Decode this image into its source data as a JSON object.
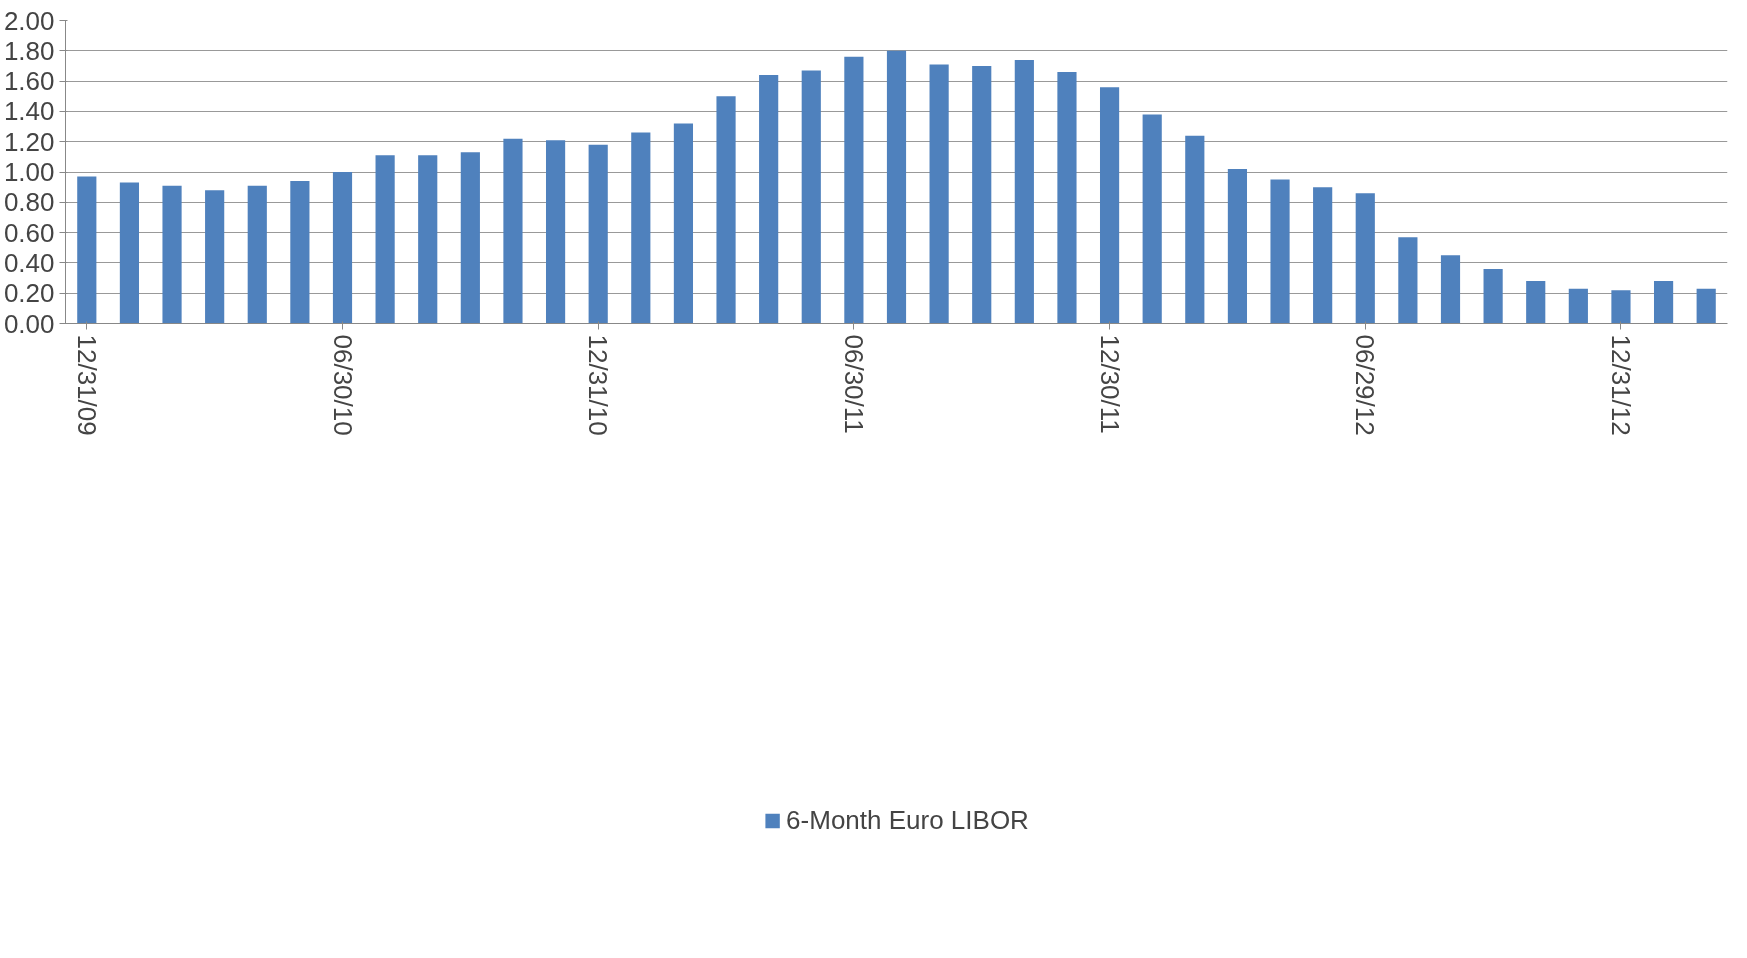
{
  "chart_data": {
    "type": "bar",
    "categories": [
      "12/31/09",
      null,
      null,
      null,
      null,
      null,
      "06/30/10",
      null,
      null,
      null,
      null,
      null,
      "12/31/10",
      null,
      null,
      null,
      null,
      null,
      "06/30/11",
      null,
      null,
      null,
      null,
      null,
      "12/30/11",
      null,
      null,
      null,
      null,
      null,
      "06/29/12",
      null,
      null,
      null,
      null,
      null,
      "12/31/12",
      null,
      null
    ],
    "series": [
      {
        "name": "6-Month Euro LIBOR",
        "color": "#4f81bd",
        "values": [
          0.97,
          0.93,
          0.91,
          0.88,
          0.91,
          0.94,
          1.0,
          1.11,
          1.11,
          1.13,
          1.22,
          1.21,
          1.18,
          1.26,
          1.32,
          1.5,
          1.64,
          1.67,
          1.76,
          1.8,
          1.71,
          1.7,
          1.74,
          1.66,
          1.56,
          1.38,
          1.24,
          1.02,
          0.95,
          0.9,
          0.86,
          0.57,
          0.45,
          0.36,
          0.28,
          0.23,
          0.22,
          0.28,
          0.23
        ]
      }
    ],
    "ylim": [
      0,
      2.0
    ],
    "yticks": [
      {
        "value": 0,
        "label": "0.00"
      },
      {
        "value": 0.2,
        "label": "0.20"
      },
      {
        "value": 0.4,
        "label": "0.40"
      },
      {
        "value": 0.6,
        "label": "0.60"
      },
      {
        "value": 0.8,
        "label": "0.80"
      },
      {
        "value": 1.0,
        "label": "1.00"
      },
      {
        "value": 1.2,
        "label": "1.20"
      },
      {
        "value": 1.4,
        "label": "1.40"
      },
      {
        "value": 1.6,
        "label": "1.60"
      },
      {
        "value": 1.8,
        "label": "1.80"
      },
      {
        "value": 2.0,
        "label": "2.00"
      }
    ],
    "grid": "y",
    "legend": "bottom"
  }
}
